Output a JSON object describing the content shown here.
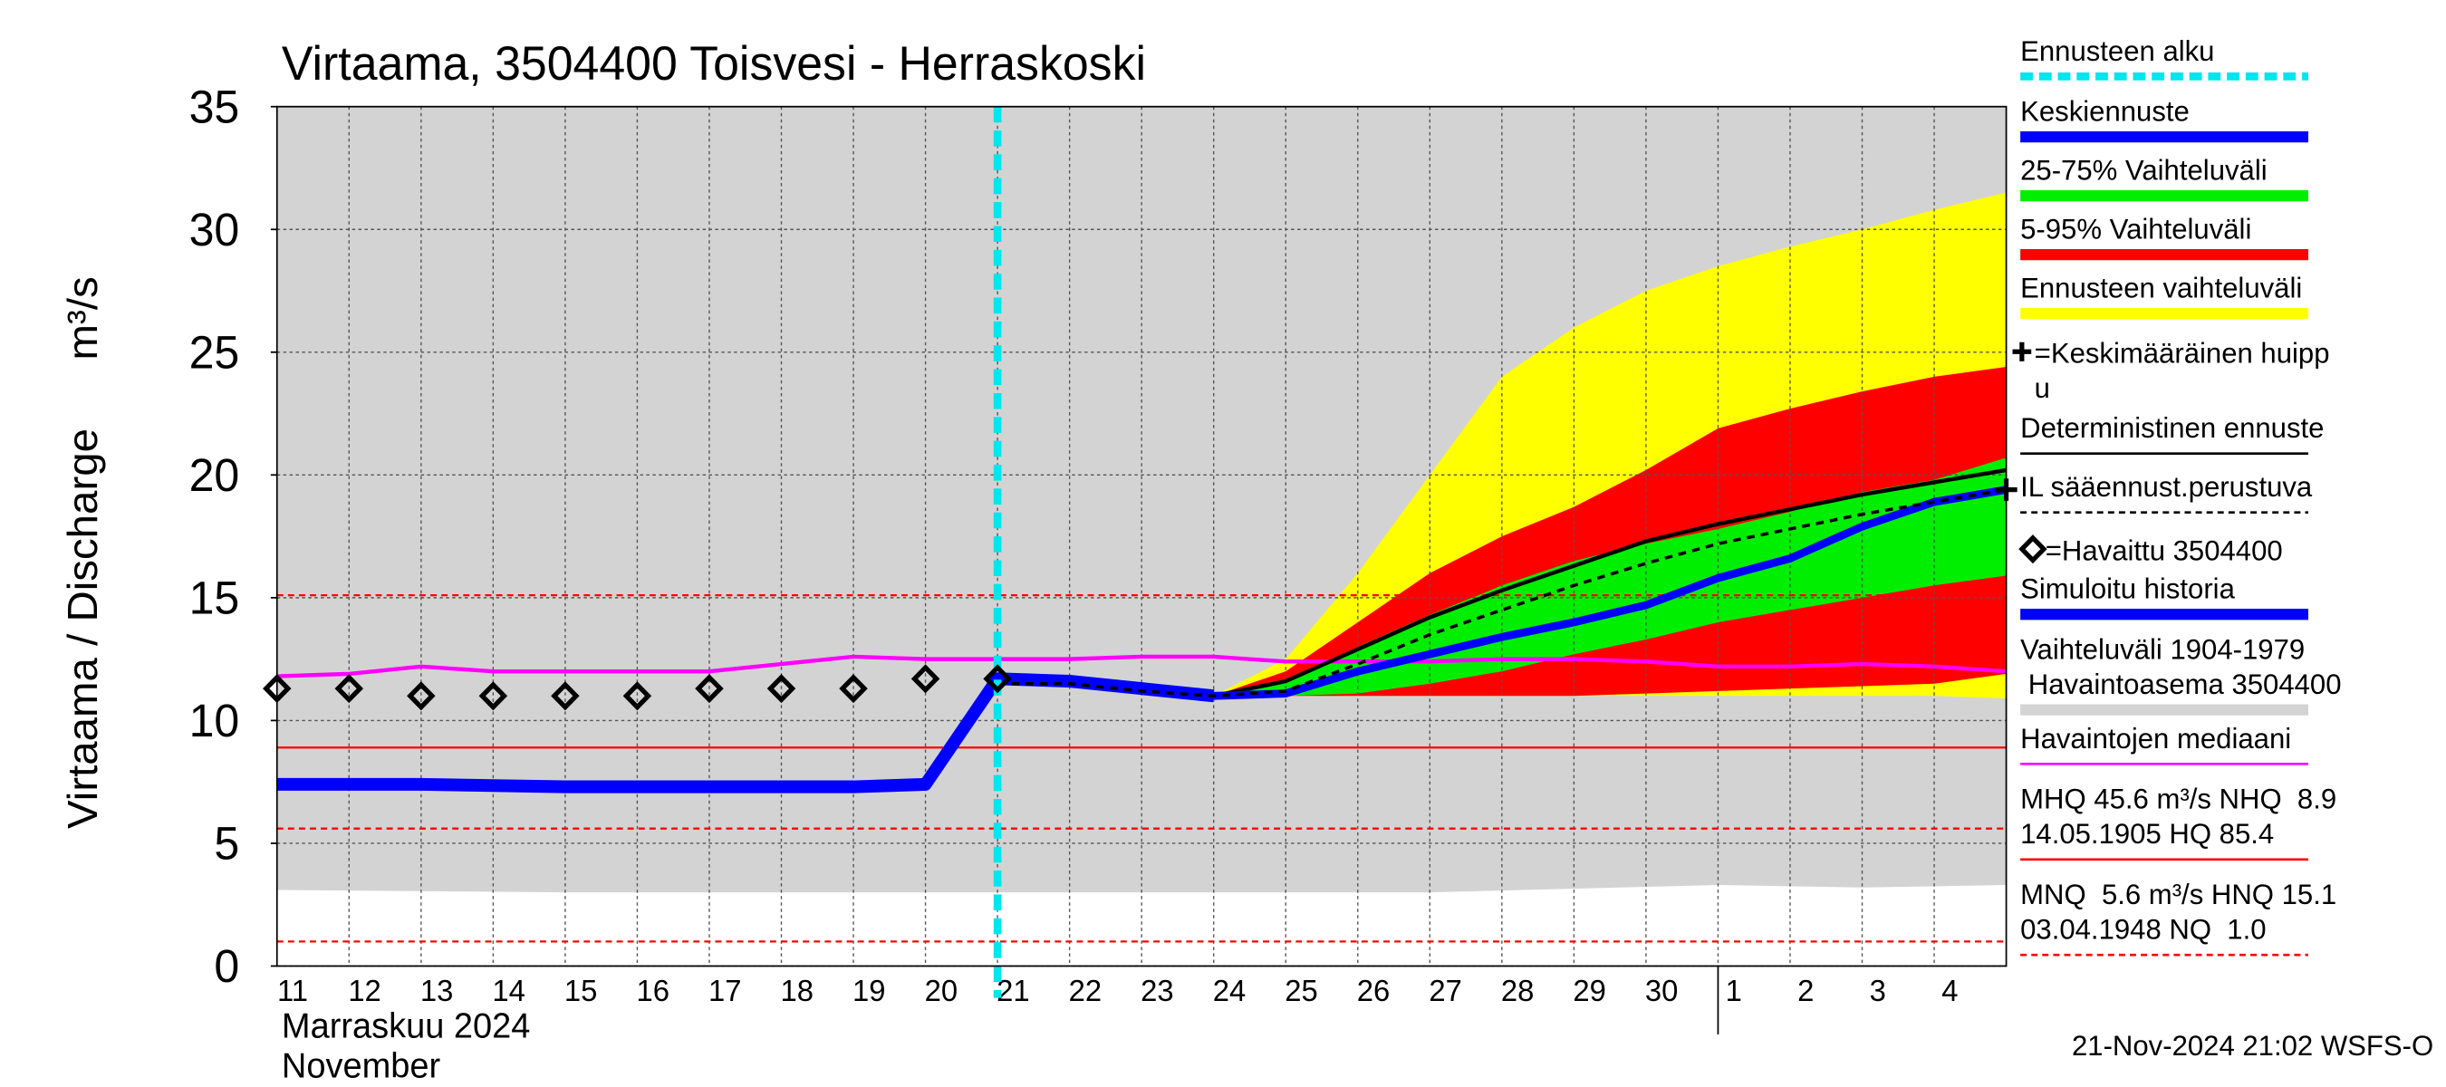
{
  "chart_data": {
    "type": "line",
    "title": "Virtaama, 3504400 Toisvesi - Herraskoski",
    "y_label": "Virtaama / Discharge",
    "unit_label": "m³/s",
    "month_labels": [
      "Marraskuu 2024",
      "November"
    ],
    "footer": "21-Nov-2024 21:02 WSFS-O",
    "xlim": [
      0,
      24
    ],
    "ylim": [
      0,
      35
    ],
    "yticks": [
      0,
      5,
      10,
      15,
      20,
      25,
      30,
      35
    ],
    "xticks": [
      {
        "value": 0,
        "label": "11"
      },
      {
        "value": 1,
        "label": "12"
      },
      {
        "value": 2,
        "label": "13"
      },
      {
        "value": 3,
        "label": "14"
      },
      {
        "value": 4,
        "label": "15"
      },
      {
        "value": 5,
        "label": "16"
      },
      {
        "value": 6,
        "label": "17"
      },
      {
        "value": 7,
        "label": "18"
      },
      {
        "value": 8,
        "label": "19"
      },
      {
        "value": 9,
        "label": "20"
      },
      {
        "value": 10,
        "label": "21"
      },
      {
        "value": 11,
        "label": "22"
      },
      {
        "value": 12,
        "label": "23"
      },
      {
        "value": 13,
        "label": "24"
      },
      {
        "value": 14,
        "label": "25"
      },
      {
        "value": 15,
        "label": "26"
      },
      {
        "value": 16,
        "label": "27"
      },
      {
        "value": 17,
        "label": "28"
      },
      {
        "value": 18,
        "label": "29"
      },
      {
        "value": 19,
        "label": "30"
      },
      {
        "value": 20,
        "label": "1"
      },
      {
        "value": 21,
        "label": "2"
      },
      {
        "value": 22,
        "label": "3"
      },
      {
        "value": 23,
        "label": "4"
      }
    ],
    "month_ticks": [
      20
    ],
    "forecast_start": 10,
    "background_band": {
      "color": "#d3d3d3",
      "x": [
        0,
        4,
        8,
        12,
        16,
        20,
        22,
        24
      ],
      "low": [
        3.1,
        3.0,
        3.0,
        3.0,
        3.0,
        3.3,
        3.2,
        3.3
      ],
      "high": [
        35,
        35,
        35,
        35,
        35,
        35,
        35,
        35
      ]
    },
    "bands": [
      {
        "color": "#ffff00",
        "x": [
          10,
          11,
          12,
          13,
          14,
          15,
          16,
          17,
          18,
          19,
          20,
          21,
          22,
          23,
          24
        ],
        "low": [
          11.7,
          11.6,
          11.3,
          11.0,
          11.0,
          11.0,
          11.0,
          11.0,
          11.0,
          11.0,
          11.0,
          11.0,
          11.0,
          11.0,
          10.9
        ],
        "high": [
          11.7,
          11.6,
          11.3,
          11.0,
          12.5,
          16.0,
          20.0,
          24.0,
          26.0,
          27.5,
          28.5,
          29.3,
          30.0,
          30.8,
          31.5
        ]
      },
      {
        "color": "#ff0000",
        "x": [
          10,
          11,
          12,
          13,
          14,
          15,
          16,
          17,
          18,
          19,
          20,
          21,
          22,
          23,
          24
        ],
        "low": [
          11.7,
          11.6,
          11.3,
          11.0,
          11.0,
          11.0,
          11.0,
          11.0,
          11.0,
          11.1,
          11.2,
          11.3,
          11.4,
          11.5,
          11.9
        ],
        "high": [
          11.7,
          11.6,
          11.3,
          11.0,
          12.0,
          14.0,
          16.0,
          17.5,
          18.7,
          20.2,
          21.9,
          22.7,
          23.4,
          24.0,
          24.4
        ]
      },
      {
        "color": "#00ee00",
        "x": [
          10,
          11,
          12,
          13,
          14,
          15,
          16,
          17,
          18,
          19,
          20,
          21,
          22,
          23,
          24
        ],
        "low": [
          11.7,
          11.6,
          11.3,
          11.0,
          11.0,
          11.1,
          11.5,
          12.0,
          12.7,
          13.3,
          14.0,
          14.5,
          15.0,
          15.5,
          15.9
        ],
        "high": [
          11.7,
          11.6,
          11.3,
          11.0,
          11.6,
          13.0,
          14.3,
          15.5,
          16.5,
          17.2,
          17.8,
          18.5,
          19.3,
          19.8,
          20.7
        ]
      }
    ],
    "ref_lines": [
      {
        "value": 15.1,
        "color": "#ff0000",
        "dash": true
      },
      {
        "value": 8.9,
        "color": "#ff0000",
        "dash": false
      },
      {
        "value": 5.6,
        "color": "#ff0000",
        "dash": true
      },
      {
        "value": 1.0,
        "color": "#ff0000",
        "dash": true
      }
    ],
    "series": [
      {
        "color": "#ff00ff",
        "width": 2.5,
        "dash": false,
        "x": [
          0,
          1,
          2,
          3,
          4,
          5,
          6,
          7,
          8,
          9,
          10,
          11,
          12,
          13,
          14,
          15,
          16,
          17,
          18,
          19,
          20,
          21,
          22,
          23,
          24
        ],
        "values": [
          11.8,
          11.9,
          12.2,
          12.0,
          12.0,
          12.0,
          12.0,
          12.3,
          12.6,
          12.5,
          12.5,
          12.5,
          12.6,
          12.6,
          12.4,
          12.4,
          12.4,
          12.5,
          12.5,
          12.4,
          12.2,
          12.2,
          12.3,
          12.2,
          12.0
        ]
      },
      {
        "color": "#0000ff",
        "width": 8,
        "dash": false,
        "x": [
          0,
          1,
          2,
          3,
          4,
          5,
          6,
          7,
          8,
          9,
          10,
          11,
          12,
          13
        ],
        "values": [
          7.4,
          7.4,
          7.4,
          7.35,
          7.3,
          7.3,
          7.3,
          7.3,
          7.3,
          7.4,
          11.7,
          11.6,
          11.3,
          11.0
        ]
      },
      {
        "color": "#000000",
        "width": 2.5,
        "dash": false,
        "x": [
          10,
          11,
          12,
          13,
          14,
          15,
          16,
          17,
          18,
          19,
          20,
          21,
          22,
          23,
          24
        ],
        "values": [
          11.7,
          11.6,
          11.3,
          11.0,
          11.6,
          12.9,
          14.2,
          15.3,
          16.3,
          17.3,
          18.0,
          18.6,
          19.2,
          19.7,
          20.2
        ]
      },
      {
        "color": "#0000ff",
        "width": 5,
        "dash": false,
        "x": [
          10,
          11,
          12,
          13,
          14,
          15,
          16,
          17,
          18,
          19,
          20,
          21,
          22,
          23,
          24
        ],
        "values": [
          11.7,
          11.6,
          11.3,
          11.0,
          11.1,
          12.0,
          12.7,
          13.4,
          14.0,
          14.7,
          15.8,
          16.6,
          17.9,
          18.9,
          19.4
        ]
      },
      {
        "color": "#000000",
        "width": 2,
        "dash": true,
        "x": [
          10,
          11,
          12,
          13,
          14,
          15,
          16,
          17,
          18,
          19,
          20,
          21,
          22,
          23,
          24
        ],
        "values": [
          11.5,
          11.5,
          11.2,
          11.0,
          11.2,
          12.3,
          13.5,
          14.5,
          15.5,
          16.4,
          17.2,
          17.8,
          18.4,
          18.9,
          19.4
        ]
      }
    ],
    "observed": {
      "x": [
        0,
        1,
        2,
        3,
        4,
        5,
        6,
        7,
        8,
        9,
        10
      ],
      "values": [
        11.3,
        11.3,
        11.0,
        11.0,
        11.0,
        11.0,
        11.3,
        11.3,
        11.3,
        11.7,
        11.7
      ]
    },
    "peak": {
      "x": 24,
      "value": 19.4
    },
    "legend": [
      {
        "lines": [
          "Ennusteen alku"
        ],
        "color": "#00e5ee",
        "style": "dashed-thick"
      },
      {
        "lines": [
          "Keskiennuste"
        ],
        "color": "#0000ff",
        "style": "thick"
      },
      {
        "lines": [
          "25-75% Vaihteluväli"
        ],
        "color": "#00ee00",
        "style": "thick"
      },
      {
        "lines": [
          "5-95% Vaihteluväli"
        ],
        "color": "#ff0000",
        "style": "thick"
      },
      {
        "lines": [
          "Ennusteen vaihteluväli"
        ],
        "color": "#ffff00",
        "style": "thick"
      },
      {
        "lines": [
          "=Keskimääräinen huipp",
          "u"
        ],
        "color": "#000000",
        "style": "cross"
      },
      {
        "lines": [
          "Deterministinen ennuste"
        ],
        "color": "#000000",
        "style": "thin"
      },
      {
        "lines": [
          "IL sääennust.perustuva"
        ],
        "color": "#000000",
        "style": "dashed"
      },
      {
        "lines": [
          "=Havaittu 3504400"
        ],
        "color": "#000000",
        "style": "diamond"
      },
      {
        "lines": [
          "Simuloitu historia"
        ],
        "color": "#0000ff",
        "style": "thick"
      },
      {
        "lines": [
          "Vaihteluväli 1904-1979",
          " Havaintoasema 3504400"
        ],
        "color": "#d3d3d3",
        "style": "thick"
      },
      {
        "lines": [
          "Havaintojen mediaani"
        ],
        "color": "#ff00ff",
        "style": "thin"
      },
      {
        "lines": [
          "MHQ 45.6 m³/s NHQ  8.9",
          "14.05.1905 HQ 85.4"
        ],
        "color": "#ff0000",
        "style": "thin"
      },
      {
        "lines": [
          "MNQ  5.6 m³/s HNQ 15.1",
          "03.04.1948 NQ  1.0"
        ],
        "color": "#ff0000",
        "style": "dashed"
      }
    ]
  }
}
